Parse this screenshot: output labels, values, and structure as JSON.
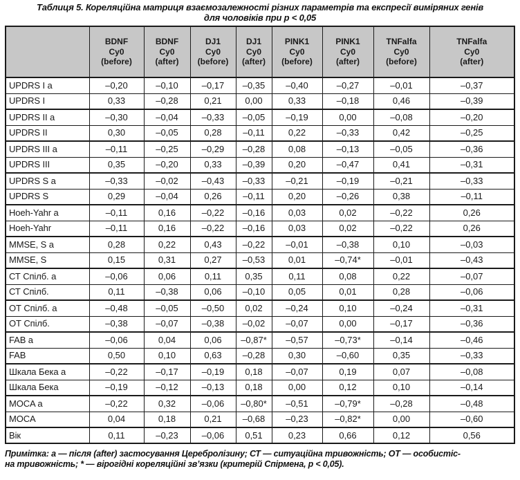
{
  "title": {
    "line1": "Таблиця 5. Кореляційна матриця взаємозалежності різних параметрів та експресії виміряних генів",
    "line2": "для чоловіків при p < 0,05"
  },
  "colors": {
    "header_bg": "#c7c7c7",
    "border": "#1a1a1a",
    "text": "#1a1a1a"
  },
  "table": {
    "corner_label": "",
    "columns": [
      {
        "id": "bdnf-before",
        "lines": [
          "BDNF",
          "Cy0",
          "(before)"
        ]
      },
      {
        "id": "bdnf-after",
        "lines": [
          "BDNF",
          "Cy0",
          "(after)"
        ]
      },
      {
        "id": "dj1-before",
        "lines": [
          "DJ1",
          "Cy0",
          "(before)"
        ]
      },
      {
        "id": "dj1-after",
        "lines": [
          "DJ1",
          "Cy0",
          "(after)"
        ]
      },
      {
        "id": "pink1-before",
        "lines": [
          "PINK1",
          "Cy0",
          "(before)"
        ]
      },
      {
        "id": "pink1-after",
        "lines": [
          "PINK1",
          "Cy0",
          "(after)"
        ]
      },
      {
        "id": "tnfalfa-before",
        "lines": [
          "TNFalfa",
          "Cy0",
          "(before)"
        ]
      },
      {
        "id": "tnfalfa-after",
        "lines": [
          "TNFalfa",
          "Cy0",
          "(after)"
        ]
      }
    ],
    "rows": [
      {
        "label": "UPDRS I а",
        "values": [
          "–0,20",
          "–0,10",
          "–0,17",
          "–0,35",
          "–0,40",
          "–0,27",
          "–0,01",
          "–0,37"
        ]
      },
      {
        "label": "UPDRS I",
        "values": [
          "0,33",
          "–0,28",
          "0,21",
          "0,00",
          "0,33",
          "–0,18",
          "0,46",
          "–0,39"
        ]
      },
      {
        "label": "UPDRS II а",
        "values": [
          "–0,30",
          "–0,04",
          "–0,33",
          "–0,05",
          "–0,19",
          "0,00",
          "–0,08",
          "–0,20"
        ]
      },
      {
        "label": "UPDRS II",
        "values": [
          "0,30",
          "–0,05",
          "0,28",
          "–0,11",
          "0,22",
          "–0,33",
          "0,42",
          "–0,25"
        ]
      },
      {
        "label": "UPDRS III а",
        "values": [
          "–0,11",
          "–0,25",
          "–0,29",
          "–0,28",
          "0,08",
          "–0,13",
          "–0,05",
          "–0,36"
        ]
      },
      {
        "label": "UPDRS III",
        "values": [
          "0,35",
          "–0,20",
          "0,33",
          "–0,39",
          "0,20",
          "–0,47",
          "0,41",
          "–0,31"
        ]
      },
      {
        "label": "UPDRS S а",
        "values": [
          "–0,33",
          "–0,02",
          "–0,43",
          "–0,33",
          "–0,21",
          "–0,19",
          "–0,21",
          "–0,33"
        ]
      },
      {
        "label": "UPDRS S",
        "values": [
          "0,29",
          "–0,04",
          "0,26",
          "–0,11",
          "0,20",
          "–0,26",
          "0,38",
          "–0,11"
        ]
      },
      {
        "label": "Hoeh-Yahr а",
        "values": [
          "–0,11",
          "0,16",
          "–0,22",
          "–0,16",
          "0,03",
          "0,02",
          "–0,22",
          "0,26"
        ]
      },
      {
        "label": "Hoeh-Yahr",
        "values": [
          "–0,11",
          "0,16",
          "–0,22",
          "–0,16",
          "0,03",
          "0,02",
          "–0,22",
          "0,26"
        ]
      },
      {
        "label": "MMSE, S а",
        "values": [
          "0,28",
          "0,22",
          "0,43",
          "–0,22",
          "–0,01",
          "–0,38",
          "0,10",
          "–0,03"
        ]
      },
      {
        "label": "MMSE, S",
        "values": [
          "0,15",
          "0,31",
          "0,27",
          "–0,53",
          "0,01",
          "–0,74*",
          "–0,01",
          "–0,43"
        ]
      },
      {
        "label": "СТ Спілб. а",
        "values": [
          "–0,06",
          "0,06",
          "0,11",
          "0,35",
          "0,11",
          "0,08",
          "0,22",
          "–0,07"
        ]
      },
      {
        "label": "СТ Спілб.",
        "values": [
          "0,11",
          "–0,38",
          "0,06",
          "–0,10",
          "0,05",
          "0,01",
          "0,28",
          "–0,06"
        ]
      },
      {
        "label": "ОТ Спілб. а",
        "values": [
          "–0,48",
          "–0,05",
          "–0,50",
          "0,02",
          "–0,24",
          "0,10",
          "–0,24",
          "–0,31"
        ]
      },
      {
        "label": "ОТ Спілб.",
        "values": [
          "–0,38",
          "–0,07",
          "–0,38",
          "–0,02",
          "–0,07",
          "0,00",
          "–0,17",
          "–0,36"
        ]
      },
      {
        "label": "FAB а",
        "values": [
          "–0,06",
          "0,04",
          "0,06",
          "–0,87*",
          "–0,57",
          "–0,73*",
          "–0,14",
          "–0,46"
        ]
      },
      {
        "label": "FAB",
        "values": [
          "0,50",
          "0,10",
          "0,63",
          "–0,28",
          "0,30",
          "–0,60",
          "0,35",
          "–0,33"
        ]
      },
      {
        "label": "Шкала Бека а",
        "values": [
          "–0,22",
          "–0,17",
          "–0,19",
          "0,18",
          "–0,07",
          "0,19",
          "0,07",
          "–0,08"
        ]
      },
      {
        "label": "Шкала Бека",
        "values": [
          "–0,19",
          "–0,12",
          "–0,13",
          "0,18",
          "0,00",
          "0,12",
          "0,10",
          "–0,14"
        ]
      },
      {
        "label": "MOCA а",
        "values": [
          "–0,22",
          "0,32",
          "–0,06",
          "–0,80*",
          "–0,51",
          "–0,79*",
          "–0,28",
          "–0,48"
        ]
      },
      {
        "label": "MOCA",
        "values": [
          "0,04",
          "0,18",
          "0,21",
          "–0,68",
          "–0,23",
          "–0,82*",
          "0,00",
          "–0,60"
        ]
      },
      {
        "label": "Вік",
        "values": [
          "0,11",
          "–0,23",
          "–0,06",
          "0,51",
          "0,23",
          "0,66",
          "0,12",
          "0,56"
        ]
      }
    ]
  },
  "footnote": {
    "line1": "Примітка: а — після (after) застосування Церебролізину; СТ — ситуаційна тривожність; ОТ — особистіс-",
    "line2": "на тривожність; * — вірогідні кореляційні зв’язки (критерій Спірмена, p < 0,05)."
  }
}
